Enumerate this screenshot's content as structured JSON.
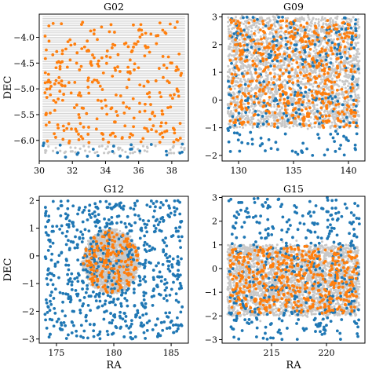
{
  "colors": {
    "footprint": "#c8c8c8",
    "outside": "#1f77b4",
    "inside": "#ff7f0e",
    "axes": "#000000"
  },
  "chart_data": [
    {
      "type": "scatter",
      "title": "G02",
      "xlabel": "",
      "ylabel": "DEC",
      "xlim": [
        30.0,
        39.0
      ],
      "ylim": [
        -6.4,
        -3.55
      ],
      "xticks": [
        30,
        32,
        34,
        36,
        38
      ],
      "yticks": [
        -6.0,
        -5.5,
        -5.0,
        -4.5,
        -4.0
      ],
      "ytick_labels": [
        "−6.0",
        "−5.5",
        "−5.0",
        "−4.5",
        "−4.0"
      ],
      "footprint": {
        "ra": [
          30.2,
          38.8
        ],
        "dec": [
          -6.1,
          -3.6
        ],
        "style": "horizontal-scan-lines"
      },
      "series": [
        {
          "n": 24,
          "ra": [
            30.2,
            38.8
          ],
          "dec": [
            -6.35,
            -6.0
          ]
        },
        {
          "n": 300,
          "ra": [
            30.3,
            38.7
          ],
          "dec": [
            -6.05,
            -3.7
          ]
        }
      ]
    },
    {
      "type": "scatter",
      "title": "G09",
      "xlabel": "",
      "ylabel": "",
      "xlim": [
        128.5,
        141.5
      ],
      "ylim": [
        -2.2,
        3.1
      ],
      "xticks": [
        130,
        135,
        140
      ],
      "yticks": [
        -2,
        -1,
        0,
        1,
        2,
        3
      ],
      "ytick_labels": [
        "−2",
        "−1",
        "0",
        "1",
        "2",
        "3"
      ],
      "footprint": {
        "ra": [
          129.0,
          141.0
        ],
        "dec": [
          -1.0,
          3.0
        ],
        "style": "patchy-band"
      },
      "series": [
        {
          "n": 300,
          "ra": [
            129.0,
            141.0
          ],
          "dec": [
            -2.0,
            3.0
          ]
        },
        {
          "n": 500,
          "ra": [
            129.2,
            140.8
          ],
          "dec": [
            -1.0,
            2.9
          ]
        }
      ]
    },
    {
      "type": "scatter",
      "title": "G12",
      "xlabel": "RA",
      "ylabel": "DEC",
      "xlim": [
        173.5,
        186.5
      ],
      "ylim": [
        -3.15,
        2.15
      ],
      "xticks": [
        175,
        180,
        185
      ],
      "yticks": [
        -3,
        -2,
        -1,
        0,
        1,
        2
      ],
      "ytick_labels": [
        "−3",
        "−2",
        "−1",
        "0",
        "1",
        "2"
      ],
      "footprint": {
        "ra": [
          177.2,
          182.3
        ],
        "dec": [
          -1.4,
          1.0
        ],
        "style": "disc"
      },
      "series": [
        {
          "n": 700,
          "ra": [
            174.0,
            186.0
          ],
          "dec": [
            -3.0,
            2.0
          ]
        },
        {
          "n": 180,
          "ra": [
            177.4,
            182.0
          ],
          "dec": [
            -1.3,
            0.9
          ]
        }
      ]
    },
    {
      "type": "scatter",
      "title": "G15",
      "xlabel": "RA",
      "ylabel": "",
      "xlim": [
        210.5,
        223.5
      ],
      "ylim": [
        -3.15,
        3.05
      ],
      "xticks": [
        215,
        220
      ],
      "yticks": [
        -3,
        -2,
        -1,
        0,
        1,
        2,
        3
      ],
      "ytick_labels": [
        "−3",
        "−2",
        "−1",
        "0",
        "1",
        "2",
        "3"
      ],
      "footprint": {
        "ra": [
          211.0,
          223.0
        ],
        "dec": [
          -2.0,
          1.0
        ],
        "style": "patchy-band"
      },
      "series": [
        {
          "n": 420,
          "ra": [
            211.0,
            223.0
          ],
          "dec": [
            -3.0,
            3.0
          ]
        },
        {
          "n": 480,
          "ra": [
            211.2,
            222.8
          ],
          "dec": [
            -1.9,
            0.95
          ]
        }
      ]
    }
  ]
}
